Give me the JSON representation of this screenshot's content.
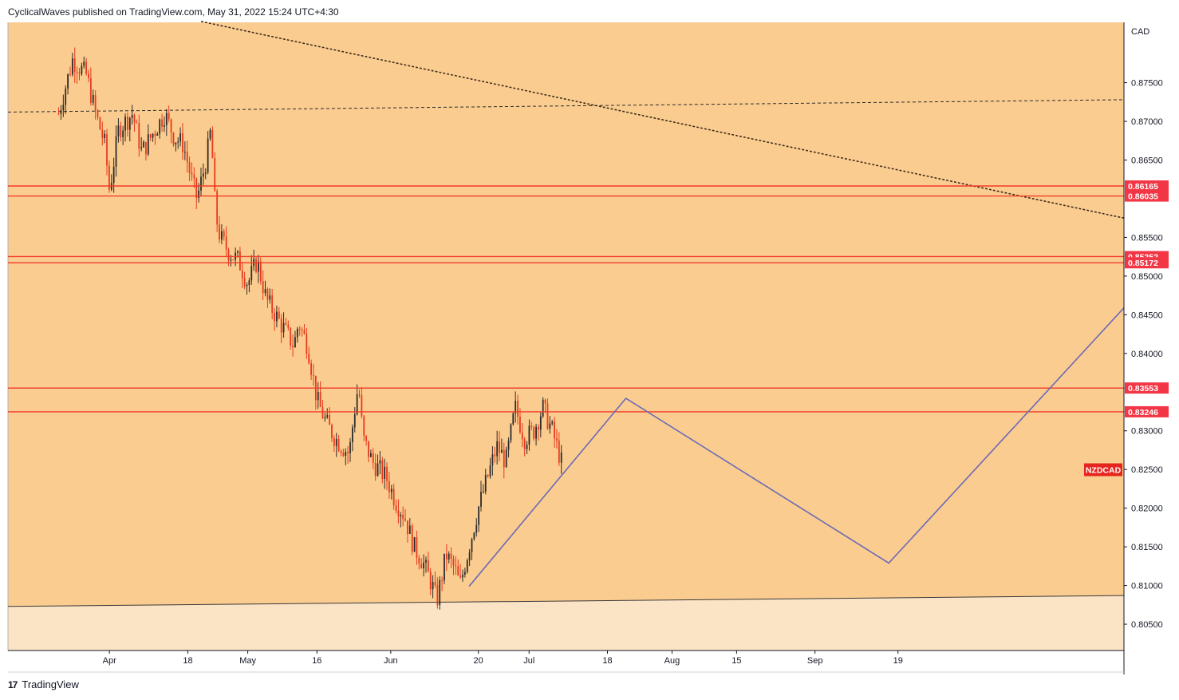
{
  "header": {
    "publisher_line": "CyclicalWaves published on TradingView.com, May 31, 2022 15:24 UTC+4:30"
  },
  "footer": {
    "brand": "TradingView",
    "logo_glyph": "17"
  },
  "colors": {
    "background": "#fbcc8f",
    "lower_band": "#fbe3c6",
    "candle_up": "#2b2b2b",
    "candle_down": "#e63b1e",
    "level_line": "#f23a28",
    "level_label_bg": "#f23645",
    "projection": "#6a6ab8",
    "trendline": "#3b2a1a"
  },
  "chart_data": {
    "type": "candlestick",
    "symbol": "NZDCAD",
    "currency": "CAD",
    "ylim": [
      0.8016,
      0.8828
    ],
    "y_ticks": [
      "0.87500",
      "0.87000",
      "0.86500",
      "0.85500",
      "0.85000",
      "0.84500",
      "0.84000",
      "0.83000",
      "0.82500",
      "0.82000",
      "0.81500",
      "0.81000",
      "0.80500"
    ],
    "x_ticks": [
      "Apr",
      "18",
      "May",
      "16",
      "Jun",
      "20",
      "Jul",
      "18",
      "Aug",
      "15",
      "Sep",
      "19"
    ],
    "horizontal_levels": [
      "0.86165",
      "0.86035",
      "0.85252",
      "0.85172",
      "0.83553",
      "0.83246"
    ],
    "price_path": [
      [
        "2022-03-21",
        0.871
      ],
      [
        "2022-03-24",
        0.878
      ],
      [
        "2022-03-27",
        0.876
      ],
      [
        "2022-03-29",
        0.871
      ],
      [
        "2022-03-31",
        0.867
      ],
      [
        "2022-04-01",
        0.861
      ],
      [
        "2022-04-03",
        0.869
      ],
      [
        "2022-04-06",
        0.871
      ],
      [
        "2022-04-08",
        0.866
      ],
      [
        "2022-04-11",
        0.869
      ],
      [
        "2022-04-13",
        0.871
      ],
      [
        "2022-04-15",
        0.868
      ],
      [
        "2022-04-17",
        0.867
      ],
      [
        "2022-04-19",
        0.862
      ],
      [
        "2022-04-20",
        0.86
      ],
      [
        "2022-04-22",
        0.865
      ],
      [
        "2022-04-23",
        0.869
      ],
      [
        "2022-04-24",
        0.858
      ],
      [
        "2022-04-25",
        0.855
      ],
      [
        "2022-04-27",
        0.853
      ],
      [
        "2022-04-29",
        0.852
      ],
      [
        "2022-05-01",
        0.849
      ],
      [
        "2022-05-03",
        0.852
      ],
      [
        "2022-05-05",
        0.847
      ],
      [
        "2022-05-07",
        0.845
      ],
      [
        "2022-05-09",
        0.843
      ],
      [
        "2022-05-11",
        0.841
      ],
      [
        "2022-05-12",
        0.844
      ],
      [
        "2022-05-14",
        0.841
      ],
      [
        "2022-05-16",
        0.834
      ],
      [
        "2022-05-18",
        0.831
      ],
      [
        "2022-05-20",
        0.829
      ],
      [
        "2022-05-23",
        0.827
      ],
      [
        "2022-05-24",
        0.832
      ],
      [
        "2022-05-25",
        0.836
      ],
      [
        "2022-05-26",
        0.829
      ],
      [
        "2022-05-28",
        0.826
      ],
      [
        "2022-05-31",
        0.824
      ],
      [
        "2022-06-02",
        0.821
      ],
      [
        "2022-06-04",
        0.819
      ],
      [
        "2022-06-06",
        0.815
      ],
      [
        "2022-06-08",
        0.813
      ],
      [
        "2022-06-10",
        0.81
      ],
      [
        "2022-06-11",
        0.808
      ],
      [
        "2022-06-13",
        0.814
      ],
      [
        "2022-06-15",
        0.812
      ],
      [
        "2022-06-16",
        0.81
      ],
      [
        "2022-06-18",
        0.815
      ],
      [
        "2022-06-20",
        0.82
      ],
      [
        "2022-06-22",
        0.824
      ],
      [
        "2022-06-24",
        0.828
      ],
      [
        "2022-06-26",
        0.826
      ],
      [
        "2022-06-28",
        0.833
      ],
      [
        "2022-06-30",
        0.829
      ],
      [
        "2022-07-02",
        0.83
      ],
      [
        "2022-07-04",
        0.833
      ],
      [
        "2022-07-06",
        0.83
      ],
      [
        "2022-07-08",
        0.826
      ]
    ],
    "projection_path": [
      [
        "2022-06-18",
        0.8099
      ],
      [
        "2022-07-22",
        0.8342
      ],
      [
        "2022-09-17",
        0.8129
      ],
      [
        "2022-11-07",
        0.8459
      ]
    ],
    "dotted_trendline": [
      [
        "2022-04-21",
        0.8829
      ],
      [
        "2022-11-07",
        0.8575
      ]
    ],
    "dashed_trendline": [
      [
        "2022-03-10",
        0.8712
      ],
      [
        "2022-11-07",
        0.8728
      ]
    ],
    "support_line": [
      [
        "2022-03-10",
        0.8073
      ],
      [
        "2022-11-07",
        0.8087
      ]
    ]
  }
}
